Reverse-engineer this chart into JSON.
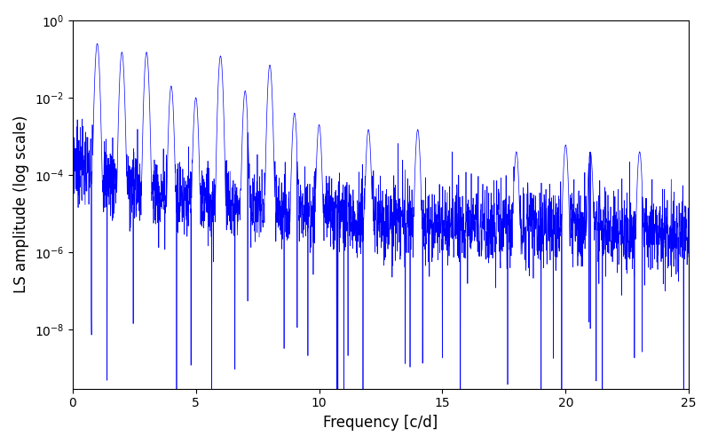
{
  "title": "",
  "xlabel": "Frequency [c/d]",
  "ylabel": "LS amplitude (log scale)",
  "xlim": [
    0,
    25
  ],
  "ylim": [
    3e-10,
    1.0
  ],
  "line_color": "#0000ff",
  "line_width": 0.5,
  "figsize": [
    8.0,
    5.0
  ],
  "dpi": 100,
  "n_points": 3000,
  "freq_max": 25.0,
  "seed": 7
}
